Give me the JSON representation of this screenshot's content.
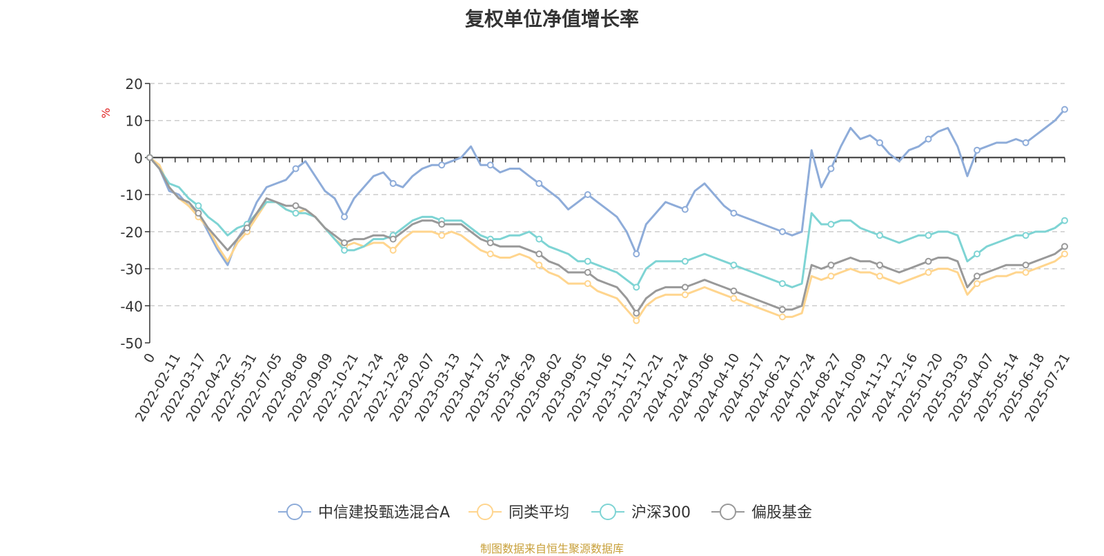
{
  "title": "复权单位净值增长率",
  "source_note": "制图数据来自恒生聚源数据库",
  "chart_data": {
    "type": "line",
    "title": "复权单位净值增长率",
    "ylabel": "%",
    "ylim": [
      -50,
      20
    ],
    "yticks": [
      20,
      10,
      0,
      -10,
      -20,
      -30,
      -40,
      -50
    ],
    "grid": true,
    "legend_position": "bottom-center",
    "x_tick_labels": [
      "0",
      "2022-02-11",
      "2022-03-17",
      "2022-04-22",
      "2022-05-31",
      "2022-07-05",
      "2022-08-08",
      "2022-09-09",
      "2022-10-21",
      "2022-11-24",
      "2022-12-28",
      "2023-02-07",
      "2023-03-13",
      "2023-04-17",
      "2023-05-24",
      "2023-06-29",
      "2023-08-02",
      "2023-09-05",
      "2023-10-16",
      "2023-11-17",
      "2023-12-21",
      "2024-01-24",
      "2024-03-06",
      "2024-04-10",
      "2024-05-17",
      "2024-06-21",
      "2024-07-24",
      "2024-08-27",
      "2024-10-09",
      "2024-11-12",
      "2024-12-16",
      "2025-01-20",
      "2025-03-03",
      "2025-04-07",
      "2025-05-14",
      "2025-06-18",
      "2025-07-21"
    ],
    "series": [
      {
        "name": "中信建投甄选混合A",
        "color": "#8eacd9",
        "values": [
          0,
          -3,
          -9,
          -10,
          -13,
          -15,
          -20,
          -25,
          -29,
          -22,
          -18,
          -12,
          -8,
          -7,
          -6,
          -3,
          -1,
          -5,
          -9,
          -11,
          -16,
          -11,
          -8,
          -5,
          -4,
          -7,
          -8,
          -5,
          -3,
          -2,
          -2,
          -1,
          0,
          3,
          -2,
          -2,
          -4,
          -3,
          -3,
          -5,
          -7,
          -9,
          -11,
          -14,
          -12,
          -10,
          -12,
          -14,
          -16,
          -20,
          -26,
          -18,
          -15,
          -12,
          -13,
          -14,
          -9,
          -7,
          -10,
          -13,
          -15,
          -16,
          -17,
          -18,
          -19,
          -20,
          -21,
          -20,
          2,
          -8,
          -3,
          3,
          8,
          5,
          6,
          4,
          1,
          -1,
          2,
          3,
          5,
          7,
          8,
          3,
          -5,
          2,
          3,
          4,
          4,
          5,
          4,
          6,
          8,
          10,
          13
        ]
      },
      {
        "name": "同类平均",
        "color": "#ffd58e",
        "values": [
          0,
          -2,
          -8,
          -11,
          -13,
          -16,
          -19,
          -24,
          -28,
          -23,
          -20,
          -16,
          -12,
          -12,
          -14,
          -15,
          -14,
          -16,
          -19,
          -22,
          -24,
          -23,
          -24,
          -23,
          -23,
          -25,
          -22,
          -20,
          -20,
          -20,
          -21,
          -20,
          -21,
          -23,
          -25,
          -26,
          -27,
          -27,
          -26,
          -27,
          -29,
          -31,
          -32,
          -34,
          -34,
          -34,
          -36,
          -37,
          -38,
          -41,
          -44,
          -40,
          -38,
          -37,
          -37,
          -37,
          -36,
          -35,
          -36,
          -37,
          -38,
          -39,
          -40,
          -41,
          -42,
          -43,
          -43,
          -42,
          -32,
          -33,
          -32,
          -31,
          -30,
          -31,
          -31,
          -32,
          -33,
          -34,
          -33,
          -32,
          -31,
          -30,
          -30,
          -31,
          -37,
          -34,
          -33,
          -32,
          -32,
          -31,
          -31,
          -30,
          -29,
          -28,
          -26
        ]
      },
      {
        "name": "沪深300",
        "color": "#7ed4d4",
        "values": [
          0,
          -3,
          -7,
          -8,
          -11,
          -13,
          -16,
          -18,
          -21,
          -19,
          -18,
          -15,
          -12,
          -12,
          -14,
          -15,
          -15,
          -16,
          -19,
          -22,
          -25,
          -25,
          -24,
          -22,
          -22,
          -21,
          -19,
          -17,
          -16,
          -16,
          -17,
          -17,
          -17,
          -19,
          -21,
          -22,
          -22,
          -21,
          -21,
          -20,
          -22,
          -24,
          -25,
          -26,
          -28,
          -28,
          -29,
          -30,
          -31,
          -33,
          -35,
          -30,
          -28,
          -28,
          -28,
          -28,
          -27,
          -26,
          -27,
          -28,
          -29,
          -30,
          -31,
          -32,
          -33,
          -34,
          -35,
          -34,
          -15,
          -18,
          -18,
          -17,
          -17,
          -19,
          -20,
          -21,
          -22,
          -23,
          -22,
          -21,
          -21,
          -20,
          -20,
          -21,
          -28,
          -26,
          -24,
          -23,
          -22,
          -21,
          -21,
          -20,
          -20,
          -19,
          -17
        ]
      },
      {
        "name": "偏股基金",
        "color": "#999999",
        "values": [
          0,
          -3,
          -8,
          -11,
          -12,
          -15,
          -19,
          -22,
          -25,
          -22,
          -19,
          -15,
          -11,
          -12,
          -13,
          -13,
          -14,
          -16,
          -19,
          -21,
          -23,
          -22,
          -22,
          -21,
          -21,
          -22,
          -20,
          -18,
          -17,
          -17,
          -18,
          -18,
          -18,
          -20,
          -22,
          -23,
          -24,
          -24,
          -24,
          -25,
          -26,
          -28,
          -29,
          -31,
          -31,
          -31,
          -33,
          -34,
          -35,
          -38,
          -42,
          -38,
          -36,
          -35,
          -35,
          -35,
          -34,
          -33,
          -34,
          -35,
          -36,
          -37,
          -38,
          -39,
          -40,
          -41,
          -41,
          -40,
          -29,
          -30,
          -29,
          -28,
          -27,
          -28,
          -28,
          -29,
          -30,
          -31,
          -30,
          -29,
          -28,
          -27,
          -27,
          -28,
          -35,
          -32,
          -31,
          -30,
          -29,
          -29,
          -29,
          -28,
          -27,
          -26,
          -24
        ]
      }
    ]
  }
}
